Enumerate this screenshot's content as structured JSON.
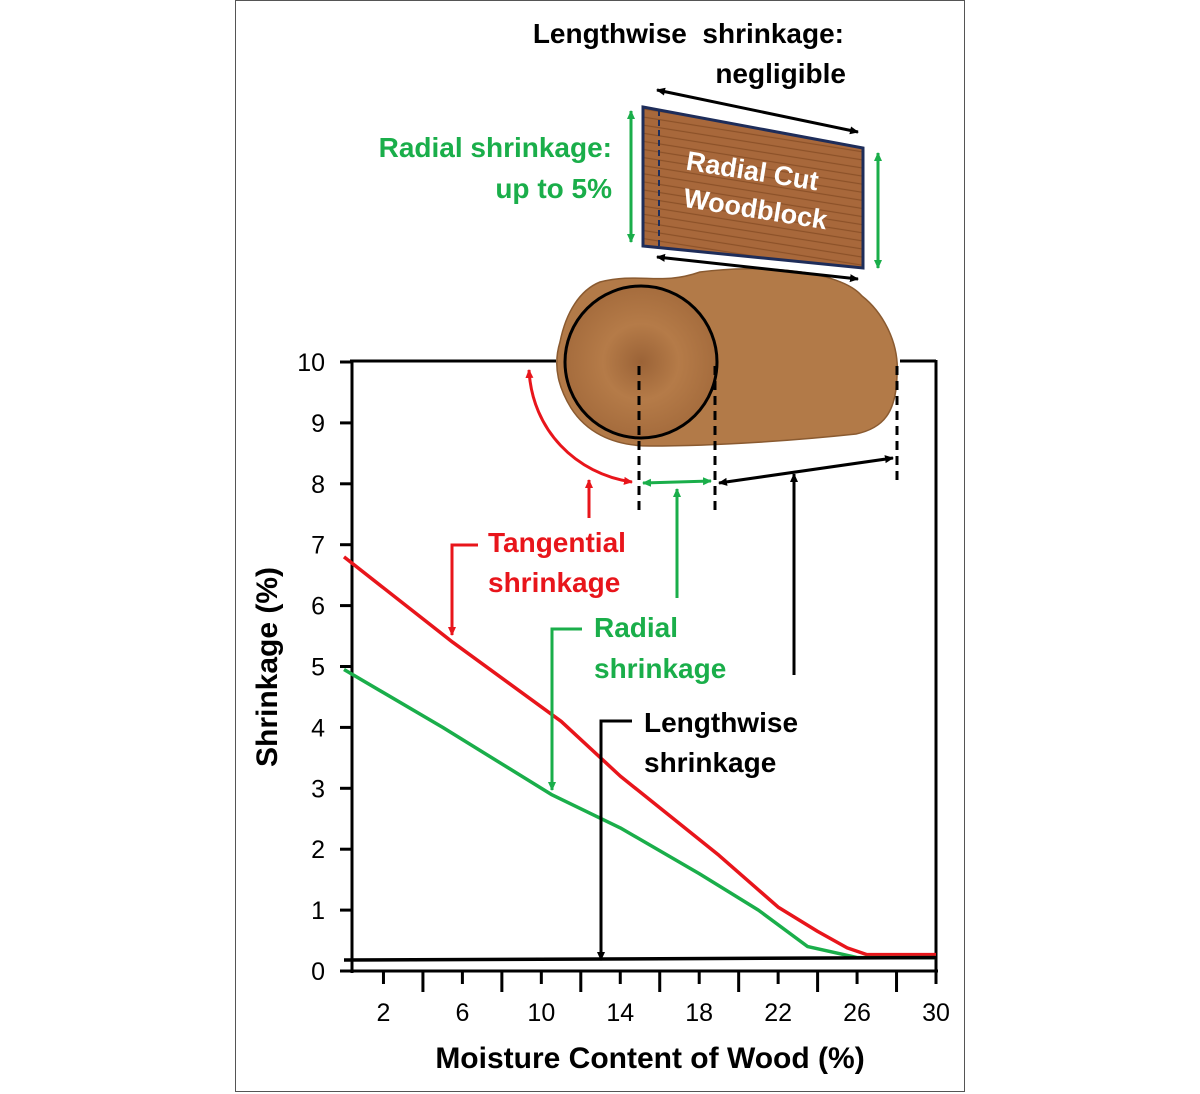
{
  "chart_data": {
    "type": "line",
    "xlabel": "Moisture Content of Wood (%)",
    "ylabel": "Shrinkage (%)",
    "xlim": [
      0,
      30
    ],
    "ylim": [
      0,
      10
    ],
    "x_ticks": [
      2,
      6,
      10,
      14,
      18,
      22,
      26,
      30
    ],
    "y_ticks": [
      0,
      1,
      2,
      3,
      4,
      5,
      6,
      7,
      8,
      9,
      10
    ],
    "series": [
      {
        "name": "Tangential shrinkage",
        "color": "#e8151b",
        "points": [
          [
            0,
            6.8
          ],
          [
            5.5,
            5.4
          ],
          [
            11,
            4.1
          ],
          [
            14,
            3.2
          ],
          [
            19,
            1.9
          ],
          [
            22,
            1.05
          ],
          [
            24,
            0.65
          ],
          [
            25.5,
            0.38
          ],
          [
            26.5,
            0.27
          ],
          [
            30,
            0.27
          ]
        ]
      },
      {
        "name": "Radial shrinkage",
        "color": "#1aae4a",
        "points": [
          [
            0,
            4.95
          ],
          [
            5,
            4.0
          ],
          [
            10.5,
            2.9
          ],
          [
            14,
            2.35
          ],
          [
            18,
            1.6
          ],
          [
            21,
            1.0
          ],
          [
            23.5,
            0.4
          ],
          [
            26,
            0.22
          ],
          [
            30,
            0.22
          ]
        ]
      },
      {
        "name": "Lengthwise shrinkage",
        "color": "#000000",
        "points": [
          [
            0,
            0.18
          ],
          [
            30,
            0.22
          ]
        ]
      }
    ]
  },
  "annotations": {
    "lengthwise_top_line1": "Lengthwise  shrinkage:",
    "lengthwise_top_line2": "negligible",
    "radial_top_line1": "Radial shrinkage:",
    "radial_top_line2": "up to 5%",
    "block_line1": "Radial Cut",
    "block_line2": "Woodblock",
    "tangential_line1": "Tangential",
    "tangential_line2": "shrinkage",
    "radial_line1": "Radial",
    "radial_line2": "shrinkage",
    "lengthwise_line1": "Lengthwise",
    "lengthwise_line2": "shrinkage"
  },
  "colors": {
    "tangential": "#e8151b",
    "radial": "#1aae4a",
    "lengthwise": "#000000",
    "wood": "#b27a48",
    "wood_block": "#a8683b",
    "block_border": "#1e2d5a"
  }
}
